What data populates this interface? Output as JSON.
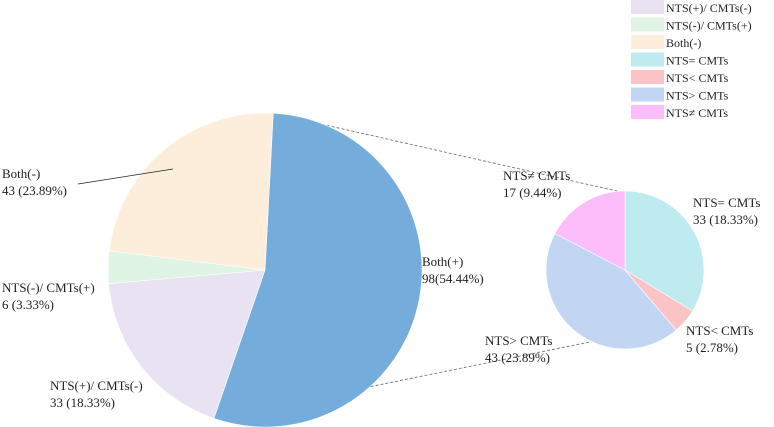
{
  "chart_data": [
    {
      "type": "pie",
      "slices": [
        {
          "label": "Both(+)",
          "value": 98,
          "percent": "54.44%",
          "display": "98(54.44%)",
          "color": "#74acdb"
        },
        {
          "label": "NTS(+)/ CMTs(-)",
          "value": 33,
          "percent": "18.33%",
          "display": "33 (18.33%)",
          "color": "#e8e2f3"
        },
        {
          "label": "NTS(-)/ CMTs(+)",
          "value": 6,
          "percent": "3.33%",
          "display": "6 (3.33%)",
          "color": "#dff4e3"
        },
        {
          "label": "Both(-)",
          "value": 43,
          "percent": "23.89%",
          "display": "43 (23.89%)",
          "color": "#fdeedb"
        }
      ]
    },
    {
      "type": "pie",
      "slices": [
        {
          "label": "NTS= CMTs",
          "value": 33,
          "percent": "18.33%",
          "display": "33 (18.33%)",
          "color": "#bdebf0"
        },
        {
          "label": "NTS< CMTs",
          "value": 5,
          "percent": "2.78%",
          "display": "5 (2.78%)",
          "color": "#fbc3c6"
        },
        {
          "label": "NTS> CMTs",
          "value": 43,
          "percent": "23.89%",
          "display": "43 (23.89%)",
          "color": "#c2d6f3"
        },
        {
          "label": "NTS≠ CMTs",
          "value": 17,
          "percent": "9.44%",
          "display": "17 (9.44%)",
          "color": "#fcbdfa"
        }
      ]
    }
  ],
  "legend": {
    "placement": "top-right",
    "items": [
      {
        "label": "NTS(+)/ CMTs(-)",
        "color": "#e8e2f3"
      },
      {
        "label": "NTS(-)/ CMTs(+)",
        "color": "#dff4e3"
      },
      {
        "label": "Both(-)",
        "color": "#fdeedb"
      },
      {
        "label": "NTS= CMTs",
        "color": "#bdebf0"
      },
      {
        "label": "NTS< CMTs",
        "color": "#fbc3c6"
      },
      {
        "label": "NTS> CMTs",
        "color": "#c2d6f3"
      },
      {
        "label": "NTS≠ CMTs",
        "color": "#fcbdfa"
      }
    ]
  }
}
